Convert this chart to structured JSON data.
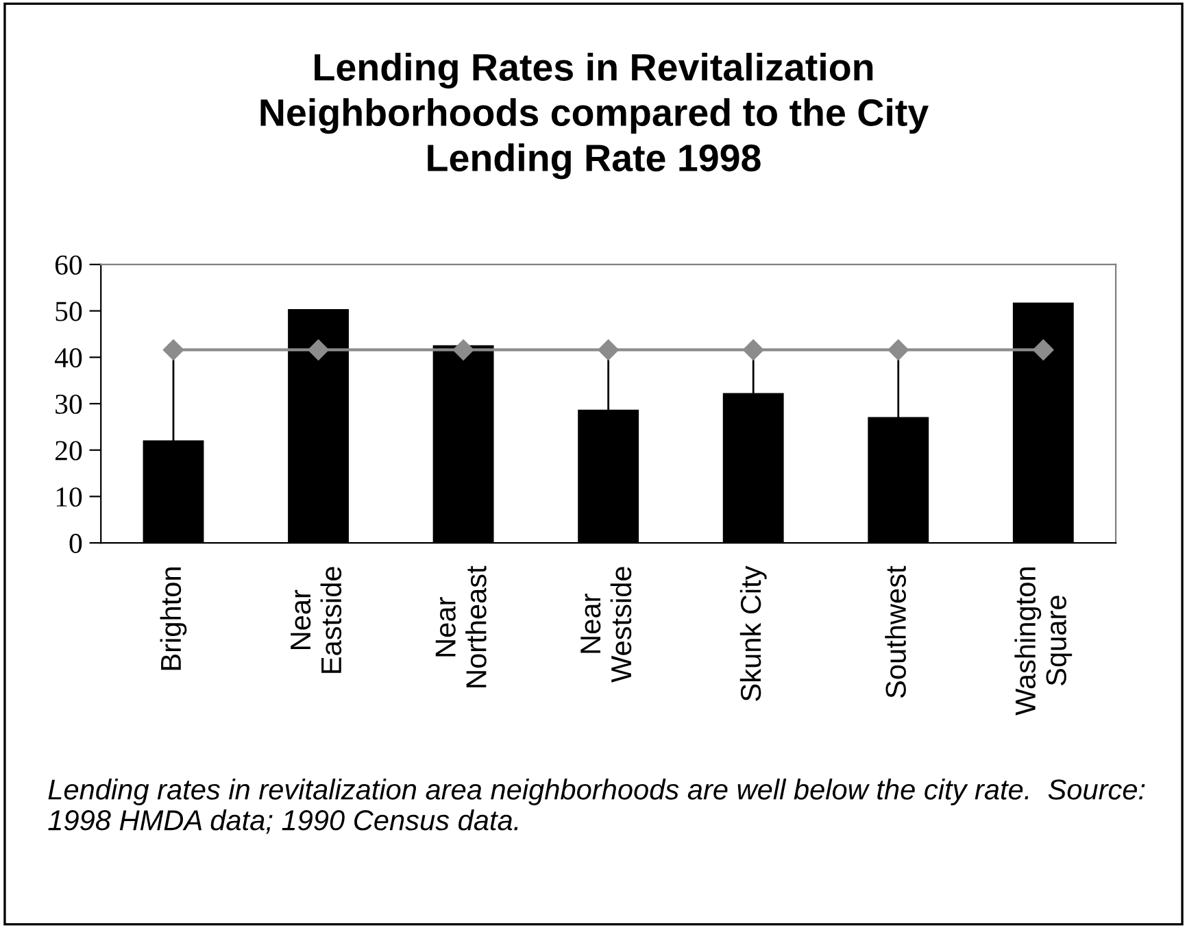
{
  "chart_data": {
    "type": "bar",
    "title": "Lending Rates in Revitalization\nNeighborhoods compared to the City\nLending Rate 1998",
    "categories": [
      "Brighton",
      "Near\nEastside",
      "Near\nNortheast",
      "Near\nWestside",
      "Skunk City",
      "Southwest",
      "Washington\nSquare"
    ],
    "series": [
      {
        "color": "#000000",
        "values": [
          22.1,
          50.4,
          42.6,
          28.7,
          32.3,
          27.1,
          51.8
        ]
      },
      {
        "type": "line",
        "color": "#8c8c8c",
        "marker": "diamond",
        "line_style": "solid",
        "values": [
          41.6,
          41.6,
          41.6,
          41.6,
          41.6,
          41.6,
          41.6
        ],
        "errors": [
          [
            22.1,
            41.6
          ],
          null,
          null,
          [
            28.7,
            41.6
          ],
          [
            32.3,
            41.6
          ],
          [
            27.1,
            41.6
          ],
          null
        ]
      }
    ],
    "ylim": [
      0,
      60
    ],
    "yticks": [
      0,
      10,
      20,
      30,
      40,
      50,
      60
    ],
    "grid": false,
    "legend": false,
    "annotations": [
      "Lending rates in revitalization area neighborhoods are well below the city rate.  Source: 1998 HMDA data; 1990 Census data."
    ]
  }
}
